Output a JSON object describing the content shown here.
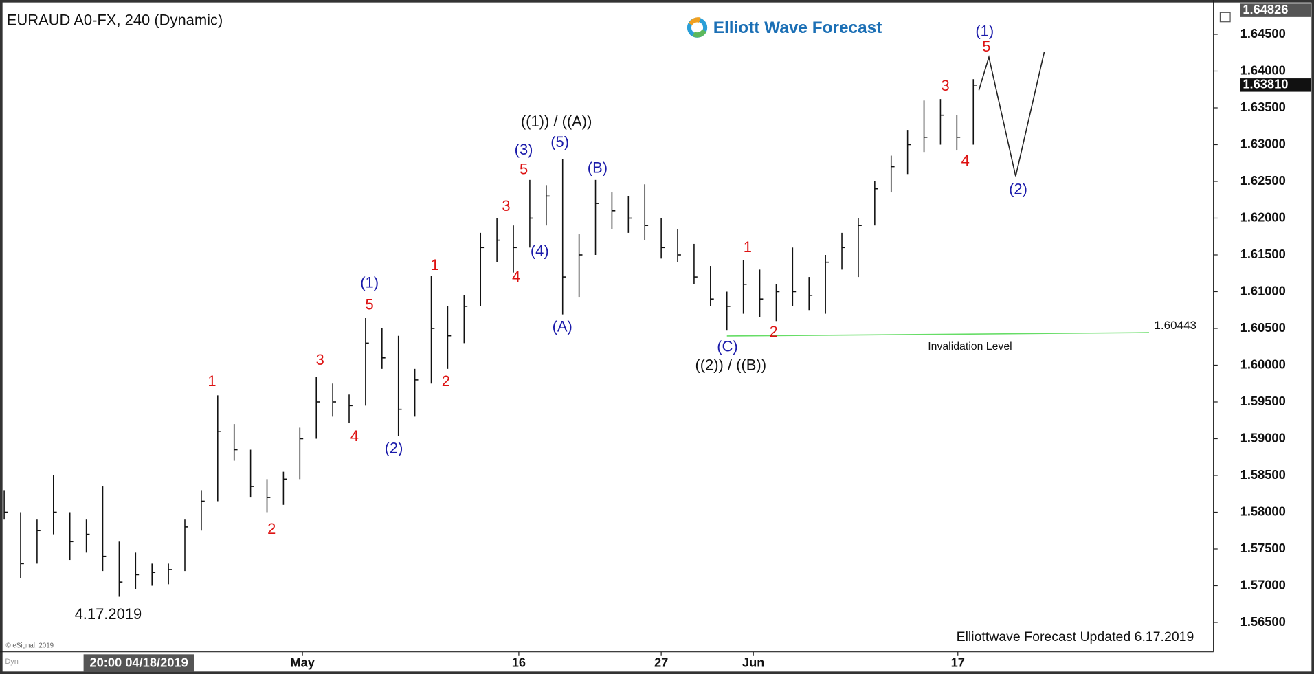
{
  "chart_data": {
    "type": "ohlc",
    "title": "EURAUD A0-FX, 240 (Dynamic)",
    "brand": "Elliott Wave Forecast",
    "footer": "Elliottwave Forecast  Updated 6.17.2019",
    "copyright": "© eSignal, 2019",
    "corner_label": "Dyn",
    "cursor": {
      "x": 8.2,
      "label": "20:00 04/18/2019"
    },
    "color": "#111111",
    "x": [
      0,
      1,
      2,
      3,
      4,
      5,
      6,
      7,
      8,
      9,
      10,
      11,
      12,
      13,
      14,
      15,
      16,
      17,
      18,
      19,
      20,
      21,
      22,
      23,
      24,
      25,
      26,
      27,
      28,
      29,
      30,
      31,
      32,
      33,
      34,
      35,
      36,
      37,
      38,
      39,
      40,
      41,
      42,
      43,
      44,
      45,
      46,
      47,
      48,
      49,
      50,
      51,
      52,
      53,
      54,
      55,
      56,
      57,
      58,
      59
    ],
    "high": [
      1.583,
      1.58,
      1.579,
      1.585,
      1.58,
      1.579,
      1.5835,
      1.576,
      1.5745,
      1.573,
      1.573,
      1.579,
      1.583,
      1.5959,
      1.592,
      1.5885,
      1.5845,
      1.5855,
      1.5915,
      1.5984,
      1.5975,
      1.596,
      1.6064,
      1.605,
      1.604,
      1.5995,
      1.6121,
      1.608,
      1.6095,
      1.618,
      1.62,
      1.619,
      1.6252,
      1.6245,
      1.628,
      1.6178,
      1.6252,
      1.6235,
      1.623,
      1.6246,
      1.62,
      1.6185,
      1.6165,
      1.6135,
      1.61,
      1.6143,
      1.613,
      1.611,
      1.616,
      1.612,
      1.615,
      1.618,
      1.62,
      1.625,
      1.6285,
      1.632,
      1.636,
      1.6362,
      1.634,
      1.6389
    ],
    "low": [
      1.579,
      1.571,
      1.573,
      1.577,
      1.5735,
      1.5745,
      1.572,
      1.5685,
      1.5695,
      1.57,
      1.5702,
      1.572,
      1.5775,
      1.5815,
      1.587,
      1.582,
      1.58,
      1.581,
      1.5845,
      1.59,
      1.593,
      1.5921,
      1.5945,
      1.5995,
      1.5904,
      1.593,
      1.5975,
      1.5995,
      1.603,
      1.608,
      1.614,
      1.6126,
      1.616,
      1.619,
      1.6069,
      1.6092,
      1.615,
      1.6185,
      1.618,
      1.617,
      1.6145,
      1.614,
      1.611,
      1.608,
      1.6047,
      1.607,
      1.6065,
      1.606,
      1.608,
      1.6075,
      1.607,
      1.613,
      1.612,
      1.619,
      1.6235,
      1.626,
      1.629,
      1.63,
      1.6292,
      1.63
    ],
    "close": [
      1.58,
      1.573,
      1.5775,
      1.58,
      1.576,
      1.577,
      1.574,
      1.5705,
      1.5715,
      1.5718,
      1.5722,
      1.578,
      1.5815,
      1.591,
      1.5885,
      1.5835,
      1.582,
      1.5845,
      1.59,
      1.595,
      1.595,
      1.5945,
      1.603,
      1.601,
      1.594,
      1.598,
      1.605,
      1.604,
      1.608,
      1.616,
      1.617,
      1.616,
      1.62,
      1.623,
      1.612,
      1.615,
      1.622,
      1.621,
      1.62,
      1.619,
      1.616,
      1.615,
      1.612,
      1.609,
      1.608,
      1.611,
      1.609,
      1.61,
      1.61,
      1.6095,
      1.614,
      1.616,
      1.619,
      1.624,
      1.627,
      1.63,
      1.631,
      1.634,
      1.631,
      1.6381
    ],
    "last_price": {
      "value": 1.6381,
      "label": "1.63810"
    },
    "top_price": {
      "value": 1.64826,
      "label": "1.64826"
    },
    "xlim": [
      0,
      73.62
    ],
    "ylim": [
      1.56101,
      1.64876
    ],
    "xticks": [
      {
        "value": 18.16,
        "label": "May"
      },
      {
        "value": 31.33,
        "label": "16"
      },
      {
        "value": 40,
        "label": "27"
      },
      {
        "value": 45.61,
        "label": "Jun"
      },
      {
        "value": 58.06,
        "label": "17"
      }
    ],
    "yticks": [
      {
        "value": 1.565,
        "label": "1.56500"
      },
      {
        "value": 1.57,
        "label": "1.57000"
      },
      {
        "value": 1.575,
        "label": "1.57500"
      },
      {
        "value": 1.58,
        "label": "1.58000"
      },
      {
        "value": 1.585,
        "label": "1.58500"
      },
      {
        "value": 1.59,
        "label": "1.59000"
      },
      {
        "value": 1.595,
        "label": "1.59500"
      },
      {
        "value": 1.6,
        "label": "1.60000"
      },
      {
        "value": 1.605,
        "label": "1.60500"
      },
      {
        "value": 1.61,
        "label": "1.61000"
      },
      {
        "value": 1.615,
        "label": "1.61500"
      },
      {
        "value": 1.62,
        "label": "1.62000"
      },
      {
        "value": 1.625,
        "label": "1.62500"
      },
      {
        "value": 1.63,
        "label": "1.63000"
      },
      {
        "value": 1.635,
        "label": "1.63500"
      },
      {
        "value": 1.64,
        "label": "1.64000"
      },
      {
        "value": 1.645,
        "label": "1.64500"
      }
    ],
    "invalidation": {
      "value": 1.60443,
      "label": "1.60443",
      "x_start": 44.0,
      "x_end": 69.7,
      "label_x": 71.3,
      "note": "Invalidation Level",
      "note_x": 58.8,
      "note_y": 1.6025,
      "color": "#66dd66"
    },
    "projection": {
      "x": [
        59.34,
        59.95,
        61.58,
        63.32
      ],
      "y": [
        1.6374,
        1.6419,
        1.6257,
        1.6426
      ]
    },
    "annotations": [
      {
        "text": "1",
        "color": "#dd1111",
        "x": 12.65,
        "y": 1.5977
      },
      {
        "text": "2",
        "color": "#dd1111",
        "x": 16.28,
        "y": 1.5776
      },
      {
        "text": "3",
        "color": "#dd1111",
        "x": 19.23,
        "y": 1.6006
      },
      {
        "text": "4",
        "color": "#dd1111",
        "x": 21.33,
        "y": 1.5902
      },
      {
        "text": "(1)",
        "color": "#1a1aaa",
        "x": 22.24,
        "y": 1.6111
      },
      {
        "text": "5",
        "color": "#dd1111",
        "x": 22.24,
        "y": 1.6081
      },
      {
        "text": "(2)",
        "color": "#1a1aaa",
        "x": 23.72,
        "y": 1.5886
      },
      {
        "text": "1",
        "color": "#dd1111",
        "x": 26.22,
        "y": 1.6135
      },
      {
        "text": "2",
        "color": "#dd1111",
        "x": 26.89,
        "y": 1.5977
      },
      {
        "text": "3",
        "color": "#dd1111",
        "x": 30.56,
        "y": 1.6215
      },
      {
        "text": "4",
        "color": "#dd1111",
        "x": 31.17,
        "y": 1.6119
      },
      {
        "text": "(3)",
        "color": "#1a1aaa",
        "x": 31.63,
        "y": 1.6292
      },
      {
        "text": "5",
        "color": "#dd1111",
        "x": 31.63,
        "y": 1.6265
      },
      {
        "text": "(4)",
        "color": "#1a1aaa",
        "x": 32.6,
        "y": 1.6154
      },
      {
        "text": "((1)) / ((A))",
        "color": "#111111",
        "x": 33.62,
        "y": 1.633
      },
      {
        "text": "(5)",
        "color": "#1a1aaa",
        "x": 33.83,
        "y": 1.6302
      },
      {
        "text": "(A)",
        "color": "#1a1aaa",
        "x": 33.98,
        "y": 1.6051
      },
      {
        "text": "(B)",
        "color": "#1a1aaa",
        "x": 36.12,
        "y": 1.6267
      },
      {
        "text": "1",
        "color": "#dd1111",
        "x": 45.26,
        "y": 1.6159
      },
      {
        "text": "(C)",
        "color": "#1a1aaa",
        "x": 44.03,
        "y": 1.6024
      },
      {
        "text": "2",
        "color": "#dd1111",
        "x": 46.84,
        "y": 1.6044
      },
      {
        "text": "((2)) / ((B))",
        "color": "#111111",
        "x": 44.23,
        "y": 1.5999
      },
      {
        "text": "3",
        "color": "#dd1111",
        "x": 57.3,
        "y": 1.6379
      },
      {
        "text": "4",
        "color": "#dd1111",
        "x": 58.52,
        "y": 1.6277
      },
      {
        "text": "(1)",
        "color": "#1a1aaa",
        "x": 59.69,
        "y": 1.6453
      },
      {
        "text": "5",
        "color": "#dd1111",
        "x": 59.8,
        "y": 1.6432
      },
      {
        "text": "(2)",
        "color": "#1a1aaa",
        "x": 61.73,
        "y": 1.6238
      },
      {
        "text": "4.17.2019",
        "color": "#111111",
        "x": 6.33,
        "y": 1.566
      }
    ]
  }
}
